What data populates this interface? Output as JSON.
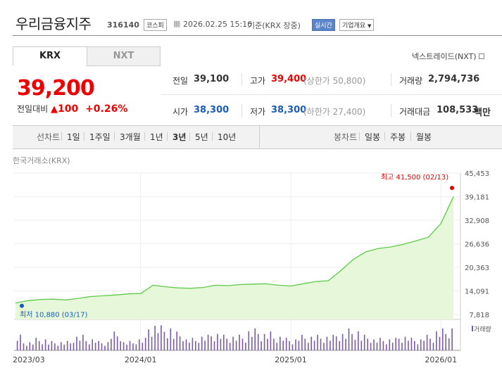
{
  "header": {
    "name": "우리금융지주",
    "code": "316140",
    "market_badge": "코스피",
    "datetime": "2026.02.25 15:16",
    "basis": "기준(KRX 장중)",
    "realtime_badge": "실시간",
    "company_button": "기업개요"
  },
  "tabs": [
    "KRX",
    "NXT"
  ],
  "nxt_link": "넥스트레이드(NXT)",
  "quote": {
    "price": "39,200",
    "change_label": "전일대비",
    "change_arrow": "▲",
    "change": "100",
    "change_pct": "+0.26%"
  },
  "stats": {
    "prev_label": "전일",
    "prev": "39,100",
    "high_label": "고가",
    "high": "39,400",
    "upper_limit": "(상한가 50,800)",
    "volume_label": "거래량",
    "volume": "2,794,736",
    "open_label": "시가",
    "open": "38,300",
    "low_label": "저가",
    "low": "38,300",
    "lower_limit": "(하한가 27,400)",
    "value_label": "거래대금",
    "value": "108,533",
    "value_unit": "백만"
  },
  "toolbar": {
    "line_label": "선차트",
    "periods": [
      "1일",
      "1주일",
      "3개월",
      "1년",
      "3년",
      "5년",
      "10년"
    ],
    "selected_period": "3년",
    "candle_label": "봉차트",
    "candle_periods": [
      "일봉",
      "주봉",
      "월봉"
    ]
  },
  "chart_data": {
    "type": "area",
    "source_label": "한국거래소(KRX)",
    "y_ticks": [
      "45,453",
      "39,181",
      "32,908",
      "26,636",
      "20,363",
      "14,091",
      "7,818"
    ],
    "ylim": [
      7818,
      45453
    ],
    "x_tick_labels": [
      "2023/03",
      "2024/01",
      "2025/01",
      "2026/01"
    ],
    "max_annotation": "최고 41,500 (02/13)",
    "min_annotation": "최저 10,880 (03/17)",
    "volume_legend": "거래량",
    "colors": {
      "line": "#5ec94a",
      "fill": "#e6f8d9",
      "max": "#e00000",
      "min": "#1a5bbf",
      "volume": "#7b5aa6"
    },
    "x": [
      "2023-03",
      "2023-04",
      "2023-05",
      "2023-06",
      "2023-07",
      "2023-08",
      "2023-09",
      "2023-10",
      "2023-11",
      "2023-12",
      "2024-01",
      "2024-02",
      "2024-03",
      "2024-04",
      "2024-05",
      "2024-06",
      "2024-07",
      "2024-08",
      "2024-09",
      "2024-10",
      "2024-11",
      "2024-12",
      "2025-01",
      "2025-02",
      "2025-03",
      "2025-04",
      "2025-05",
      "2025-06",
      "2025-07",
      "2025-08",
      "2025-09",
      "2025-10",
      "2025-11",
      "2025-12",
      "2026-01",
      "2026-02"
    ],
    "values": [
      10880,
      11500,
      11800,
      11900,
      11700,
      12100,
      12600,
      12800,
      13000,
      13300,
      13400,
      15600,
      15200,
      14900,
      14800,
      15000,
      15600,
      15500,
      15800,
      15900,
      16000,
      15600,
      15400,
      16000,
      16600,
      16800,
      19500,
      22500,
      24500,
      25400,
      25800,
      26500,
      27400,
      28400,
      32000,
      39200
    ],
    "volume": [
      5,
      3,
      4,
      3,
      3,
      5,
      4,
      3,
      6,
      3,
      4,
      9,
      8,
      6,
      4,
      5,
      6,
      5,
      5,
      7,
      6,
      5,
      4,
      5,
      5,
      5,
      6,
      7,
      5,
      4,
      4,
      5,
      4,
      5,
      7,
      8
    ]
  }
}
